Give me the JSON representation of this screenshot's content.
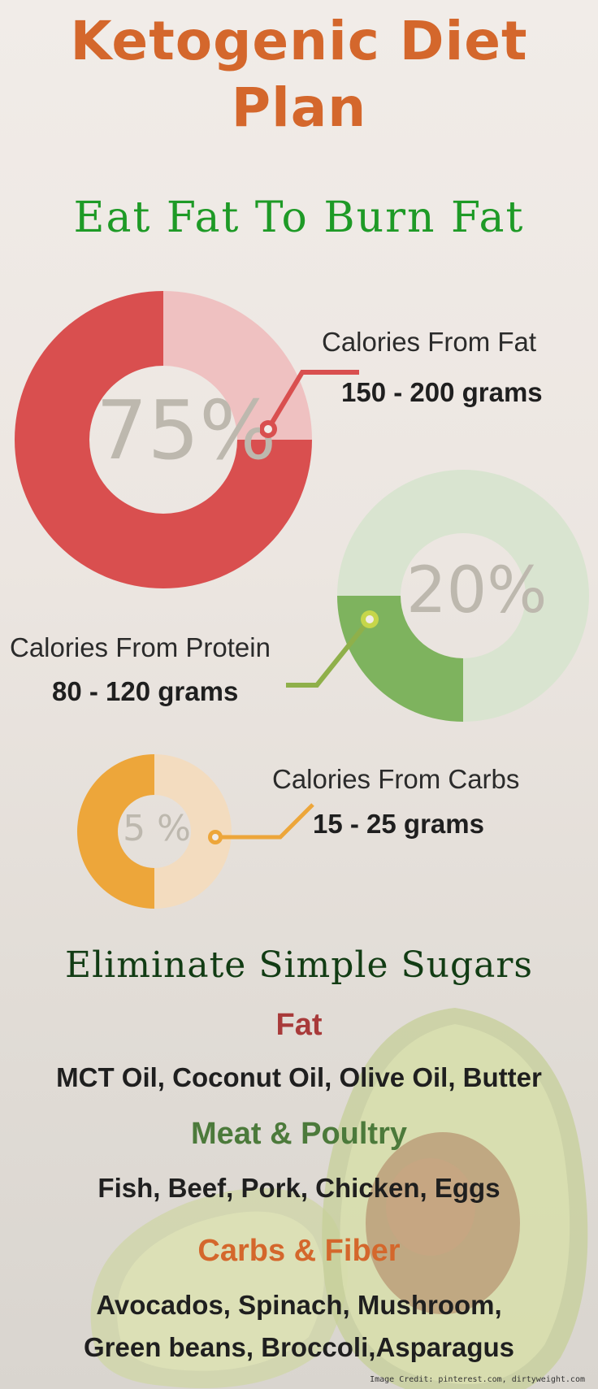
{
  "header": {
    "title_line1": "Ketogenic Diet",
    "title_line2": "Plan",
    "subtitle": "Eat Fat To Burn Fat"
  },
  "macros": [
    {
      "percent_label": "75%",
      "value": 75,
      "label": "Calories From Fat",
      "grams": "150 - 200 grams",
      "color": "#d94f4f",
      "light_color": "#efc1c1"
    },
    {
      "percent_label": "20%",
      "value": 20,
      "label": "Calories From Protein",
      "grams": "80 - 120 grams",
      "color": "#7eb35e",
      "light_color": "#d9e4d0"
    },
    {
      "percent_label": "5 %",
      "value": 5,
      "label": "Calories From Carbs",
      "grams": "15 - 25 grams",
      "color": "#eda63a",
      "light_color": "#f3dcbf"
    }
  ],
  "foods": {
    "heading": "Eliminate Simple Sugars",
    "groups": [
      {
        "category": "Fat",
        "color": "#a83a3a",
        "items": [
          "MCT Oil, Coconut Oil, Olive Oil, Butter"
        ]
      },
      {
        "category": "Meat & Poultry",
        "color": "#4c7a3b",
        "items": [
          "Fish, Beef, Pork, Chicken, Eggs"
        ]
      },
      {
        "category": "Carbs & Fiber",
        "color": "#d4672c",
        "items": [
          "Avocados, Spinach, Mushroom,",
          "Green beans, Broccoli,Asparagus"
        ]
      }
    ]
  },
  "credit": "Image Credit: pinterest.com, dirtyweight.com"
}
